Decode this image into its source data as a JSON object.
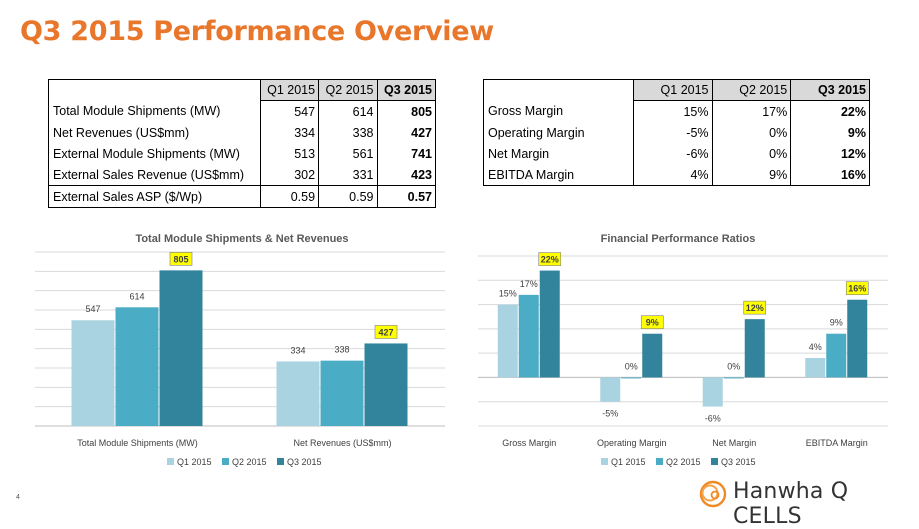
{
  "title": "Q3 2015 Performance Overview",
  "page_number": "4",
  "logo_text": "Hanwha Q CELLS",
  "colors": {
    "q1": "#a9d3e0",
    "q2": "#4bacc6",
    "q3": "#31849b",
    "title": "#e8762b",
    "highlight": "#ffff00"
  },
  "table1": {
    "headers": [
      "",
      "Q1 2015",
      "Q2 2015",
      "Q3 2015"
    ],
    "rows": [
      [
        "Total Module Shipments (MW)",
        "547",
        "614",
        "805"
      ],
      [
        "Net Revenues (US$mm)",
        "334",
        "338",
        "427"
      ],
      [
        "External Module Shipments (MW)",
        "513",
        "561",
        "741"
      ],
      [
        "External Sales Revenue (US$mm)",
        "302",
        "331",
        "423"
      ],
      [
        "External Sales ASP ($/Wp)",
        "0.59",
        "0.59",
        "0.57"
      ]
    ]
  },
  "table2": {
    "headers": [
      "",
      "Q1 2015",
      "Q2 2015",
      "Q3 2015"
    ],
    "rows": [
      [
        "Gross Margin",
        "15%",
        "17%",
        "22%"
      ],
      [
        "Operating Margin",
        "-5%",
        "0%",
        "9%"
      ],
      [
        "Net Margin",
        "-6%",
        "0%",
        "12%"
      ],
      [
        "EBITDA Margin",
        "4%",
        "9%",
        "16%"
      ]
    ]
  },
  "chart_data": [
    {
      "type": "bar",
      "title": "Total Module Shipments & Net Revenues",
      "categories": [
        "Total Module Shipments (MW)",
        "Net Revenues (US$mm)"
      ],
      "series": [
        {
          "name": "Q1 2015",
          "values": [
            547,
            334
          ],
          "labels": [
            "547",
            "334"
          ]
        },
        {
          "name": "Q2 2015",
          "values": [
            614,
            338
          ],
          "labels": [
            "614",
            "338"
          ]
        },
        {
          "name": "Q3 2015",
          "values": [
            805,
            427
          ],
          "labels": [
            "805",
            "427"
          ]
        }
      ],
      "ylim": [
        0,
        900
      ],
      "grid": true,
      "legend": "bottom",
      "highlight_series": "Q3 2015"
    },
    {
      "type": "bar",
      "title": "Financial Performance Ratios",
      "categories": [
        "Gross Margin",
        "Operating Margin",
        "Net Margin",
        "EBITDA Margin"
      ],
      "series": [
        {
          "name": "Q1 2015",
          "values": [
            15,
            -5,
            -6,
            4
          ],
          "labels": [
            "15%",
            "-5%",
            "-6%",
            "4%"
          ]
        },
        {
          "name": "Q2 2015",
          "values": [
            17,
            0,
            0,
            9
          ],
          "labels": [
            "17%",
            "0%",
            "0%",
            "9%"
          ]
        },
        {
          "name": "Q3 2015",
          "values": [
            22,
            9,
            12,
            16
          ],
          "labels": [
            "22%",
            "9%",
            "12%",
            "16%"
          ]
        }
      ],
      "ylim": [
        -10,
        25
      ],
      "grid": true,
      "legend": "bottom",
      "highlight_series": "Q3 2015"
    }
  ]
}
